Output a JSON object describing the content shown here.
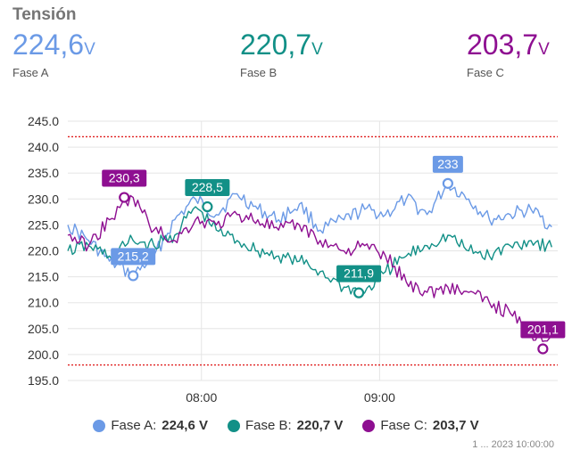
{
  "header": {
    "title": "Tensión"
  },
  "stats": [
    {
      "value": "224,6",
      "unit": "V",
      "label": "Fase A",
      "color": "#6b9ae6"
    },
    {
      "value": "220,7",
      "unit": "V",
      "label": "Fase B",
      "color": "#129087"
    },
    {
      "value": "203,7",
      "unit": "V",
      "label": "Fase C",
      "color": "#8e0f91"
    }
  ],
  "legend": [
    {
      "name": "Fase A:",
      "value": "224,6 V",
      "color": "#6b9ae6"
    },
    {
      "name": "Fase B:",
      "value": "220,7 V",
      "color": "#129087"
    },
    {
      "name": "Fase C:",
      "value": "203,7 V",
      "color": "#8e0f91"
    }
  ],
  "footer_text": "1 ... 2023 10:00:00",
  "chart_data": {
    "type": "line",
    "title": "",
    "xlabel": "",
    "ylabel": "",
    "x_range": [
      "07:15",
      "10:00"
    ],
    "ylim": [
      195,
      245
    ],
    "yticks": [
      "195.0",
      "200.0",
      "205.0",
      "210.0",
      "215.0",
      "220.0",
      "225.0",
      "230.0",
      "235.0",
      "240.0",
      "245.0"
    ],
    "xticks": [
      {
        "x": "08:00",
        "label": "08:00"
      },
      {
        "x": "09:00",
        "label": "09:00"
      }
    ],
    "grid": true,
    "reference_lines": [
      242,
      198
    ],
    "series": [
      {
        "name": "Fase A",
        "color": "#6b9ae6",
        "x": [
          "07:15",
          "07:22",
          "07:29",
          "07:37",
          "07:44",
          "07:51",
          "07:58",
          "08:05",
          "08:12",
          "08:19",
          "08:26",
          "08:33",
          "08:40",
          "08:48",
          "08:55",
          "09:02",
          "09:09",
          "09:16",
          "09:23",
          "09:30",
          "09:37",
          "09:44",
          "09:51",
          "09:58"
        ],
        "values": [
          225,
          222,
          218,
          215.2,
          219,
          226,
          230,
          227,
          231,
          228,
          226,
          229,
          224,
          226,
          228,
          227,
          230,
          227,
          233,
          230,
          226,
          227,
          228,
          224.6
        ]
      },
      {
        "name": "Fase B",
        "color": "#129087",
        "x": [
          "07:15",
          "07:22",
          "07:29",
          "07:37",
          "07:44",
          "07:51",
          "07:58",
          "08:05",
          "08:12",
          "08:19",
          "08:26",
          "08:33",
          "08:40",
          "08:48",
          "08:55",
          "09:02",
          "09:09",
          "09:16",
          "09:23",
          "09:30",
          "09:37",
          "09:44",
          "09:51",
          "09:58"
        ],
        "values": [
          220,
          221,
          219,
          222,
          221,
          223,
          228.5,
          224,
          222,
          220,
          219,
          218,
          216,
          213,
          211.9,
          216,
          219,
          221,
          223,
          220,
          219,
          221,
          222,
          220.7
        ]
      },
      {
        "name": "Fase C",
        "color": "#8e0f91",
        "x": [
          "07:15",
          "07:22",
          "07:29",
          "07:37",
          "07:44",
          "07:51",
          "07:58",
          "08:05",
          "08:12",
          "08:19",
          "08:26",
          "08:33",
          "08:40",
          "08:48",
          "08:55",
          "09:02",
          "09:09",
          "09:16",
          "09:23",
          "09:30",
          "09:37",
          "09:44",
          "09:51",
          "09:58"
        ],
        "values": [
          223,
          221,
          226,
          230.3,
          224,
          222,
          226,
          225,
          227,
          226,
          224,
          225,
          222,
          220,
          221,
          219,
          214,
          212,
          213,
          212,
          210,
          208,
          204,
          203.7
        ]
      }
    ],
    "annotations": [
      {
        "series": 0,
        "x": "07:37",
        "y": 215.2,
        "text": "215,2",
        "pos": "above"
      },
      {
        "series": 0,
        "x": "09:23",
        "y": 233,
        "text": "233",
        "pos": "above"
      },
      {
        "series": 1,
        "x": "08:02",
        "y": 228.5,
        "text": "228,5",
        "pos": "above"
      },
      {
        "series": 1,
        "x": "08:53",
        "y": 211.9,
        "text": "211,9",
        "pos": "above"
      },
      {
        "series": 2,
        "x": "07:34",
        "y": 230.3,
        "text": "230,3",
        "pos": "above"
      },
      {
        "series": 2,
        "x": "09:55",
        "y": 201.1,
        "text": "201,1",
        "pos": "above"
      }
    ]
  }
}
